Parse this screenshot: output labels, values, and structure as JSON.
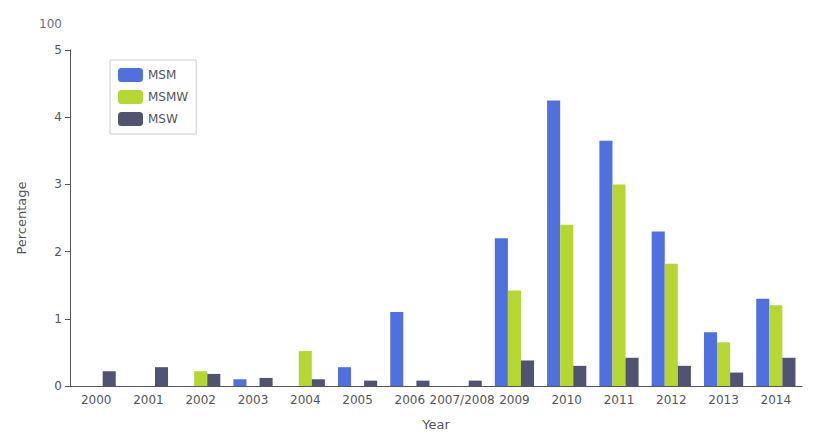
{
  "chart_data": {
    "type": "bar",
    "categories": [
      "2000",
      "2001",
      "2002",
      "2003",
      "2004",
      "2005",
      "2006",
      "2007/2008",
      "2009",
      "2010",
      "2011",
      "2012",
      "2013",
      "2014"
    ],
    "series": [
      {
        "name": "MSM",
        "values": [
          0.0,
          0.0,
          0.0,
          0.1,
          0.0,
          0.28,
          1.1,
          0.0,
          2.2,
          4.25,
          3.65,
          2.3,
          0.8,
          1.3
        ]
      },
      {
        "name": "MSMW",
        "values": [
          0.0,
          0.0,
          0.22,
          0.0,
          0.52,
          0.0,
          0.0,
          0.0,
          1.42,
          2.4,
          3.0,
          1.82,
          0.65,
          1.2
        ]
      },
      {
        "name": "MSW",
        "values": [
          0.22,
          0.28,
          0.18,
          0.12,
          0.1,
          0.08,
          0.08,
          0.08,
          0.38,
          0.3,
          0.42,
          0.3,
          0.2,
          0.42
        ]
      }
    ],
    "xlabel": "Year",
    "ylabel": "Percentage",
    "ylim": [
      0,
      5.0
    ],
    "yticks": [
      0,
      1,
      2,
      3,
      4,
      5
    ],
    "annotations": [
      "100"
    ],
    "grid": false,
    "legend": "upper left"
  }
}
